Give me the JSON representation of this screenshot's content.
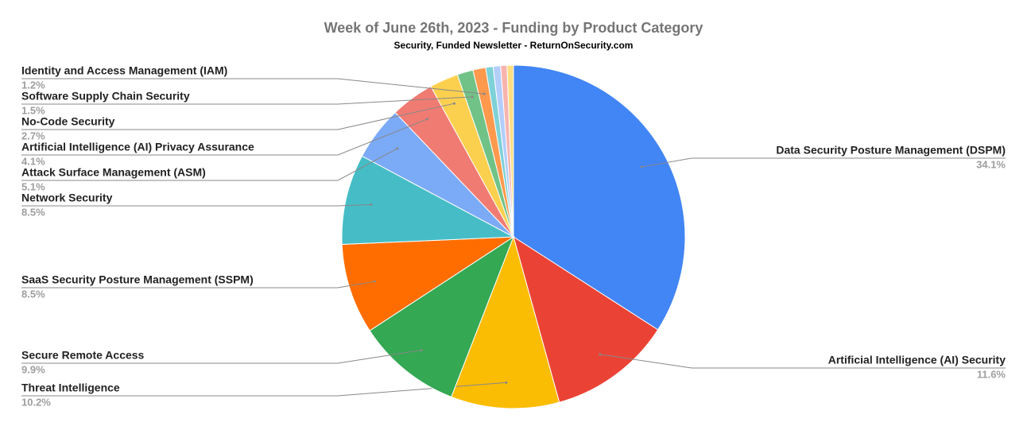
{
  "chart_data": {
    "type": "pie",
    "title": "Week of June 26th, 2023 - Funding by Product Category",
    "subtitle": "Security, Funded Newsletter - ReturnOnSecurity.com",
    "categories": [
      "Data Security Posture Management (DSPM)",
      "Artificial Intelligence (AI) Security",
      "Threat Intelligence",
      "Secure Remote Access",
      "SaaS Security Posture Management (SSPM)",
      "Network Security",
      "Attack Surface Management (ASM)",
      "Artificial Intelligence (AI) Privacy Assurance",
      "No-Code Security",
      "Software Supply Chain Security",
      "Identity and Access Management (IAM)",
      null,
      null,
      null,
      null
    ],
    "values": [
      34.1,
      11.6,
      10.2,
      9.9,
      8.5,
      8.5,
      5.1,
      4.1,
      2.7,
      1.5,
      1.2,
      0.7,
      0.7,
      0.6,
      0.6
    ],
    "value_labels": [
      "34.1%",
      "11.6%",
      "10.2%",
      "9.9%",
      "8.5%",
      "8.5%",
      "5.1%",
      "4.1%",
      "2.7%",
      "1.5%",
      "1.2%",
      null,
      null,
      null,
      null
    ],
    "colors": [
      "#4285f4",
      "#ea4335",
      "#fbbc04",
      "#34a853",
      "#ff6d01",
      "#46bdc6",
      "#7baaf7",
      "#f07b72",
      "#fcd04f",
      "#71c287",
      "#ff994d",
      "#7ed1d7",
      "#b3cefb",
      "#f7b4ae",
      "#fdde82"
    ]
  }
}
